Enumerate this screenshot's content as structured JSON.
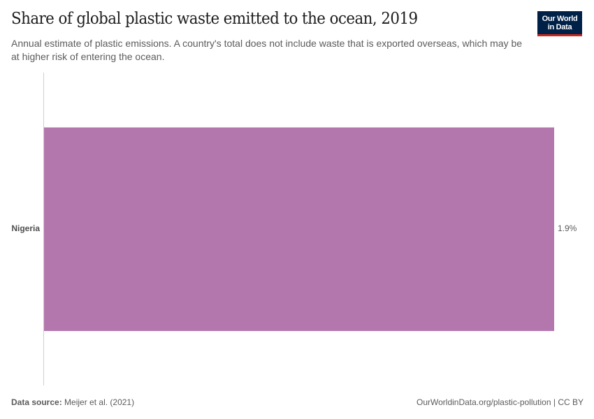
{
  "header": {
    "title": "Share of global plastic waste emitted to the ocean, 2019",
    "subtitle": "Annual estimate of plastic emissions. A country's total does not include waste that is exported overseas, which may be at higher risk of entering the ocean.",
    "logo_line1": "Our World",
    "logo_line2": "in Data"
  },
  "footer": {
    "source_label": "Data source:",
    "source_value": "Meijer et al. (2021)",
    "license": "OurWorldinData.org/plastic-pollution | CC BY"
  },
  "colors": {
    "bar": "#b377ae",
    "logo_bg": "#002147",
    "logo_accent": "#ce261e"
  },
  "chart_data": {
    "type": "bar",
    "orientation": "horizontal",
    "title": "Share of global plastic waste emitted to the ocean, 2019",
    "subtitle": "Annual estimate of plastic emissions. A country's total does not include waste that is exported overseas, which may be at higher risk of entering the ocean.",
    "categories": [
      "Nigeria"
    ],
    "values": [
      1.9
    ],
    "value_labels": [
      "1.9%"
    ],
    "unit": "%",
    "xlabel": "",
    "ylabel": "",
    "grid": false,
    "legend": "none"
  },
  "bars": [
    {
      "label": "Nigeria",
      "value": 1.9,
      "value_label": "1.9%"
    }
  ]
}
